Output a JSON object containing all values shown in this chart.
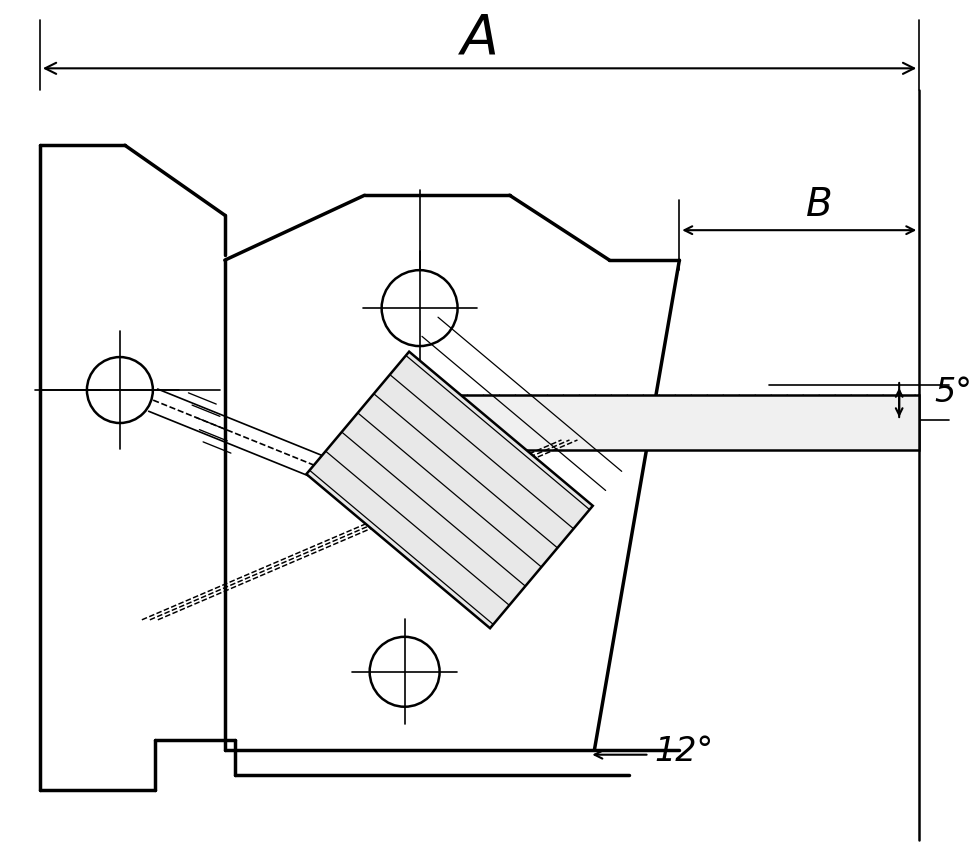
{
  "bg_color": "#ffffff",
  "line_color": "#000000",
  "lw_main": 2.5,
  "lw_med": 1.8,
  "lw_thin": 1.2,
  "lw_dim": 1.5,
  "label_A": "A",
  "label_B": "B",
  "label_5deg": "5°",
  "label_12deg": "12°"
}
